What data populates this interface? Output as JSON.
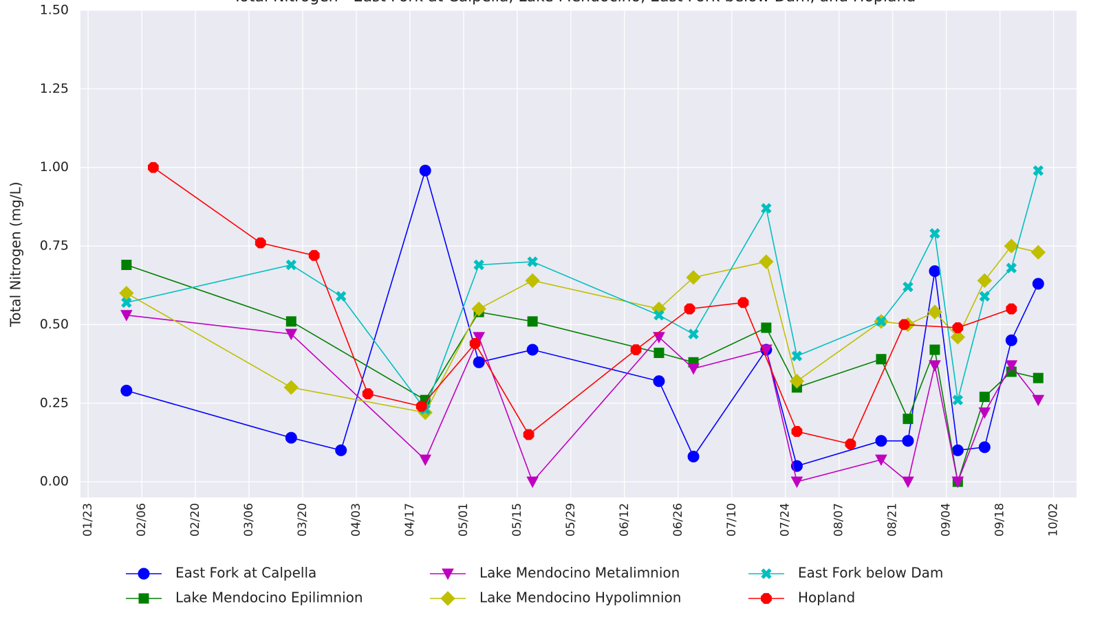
{
  "chart_data": {
    "type": "line",
    "title": "Total Nitrogen - East Fork at Calpella, Lake Mendocino, East Fork below Dam, and Hopland",
    "ylabel": "Total Nitrogen (mg/L)",
    "grid": true,
    "legend": "bottom",
    "xlim": [
      "01/21",
      "10/08"
    ],
    "xticks": [
      "01/23",
      "02/06",
      "02/20",
      "03/06",
      "03/20",
      "04/03",
      "04/17",
      "05/01",
      "05/15",
      "05/29",
      "06/12",
      "06/26",
      "07/10",
      "07/24",
      "08/07",
      "08/21",
      "09/04",
      "09/18",
      "10/02"
    ],
    "ylim": [
      -0.05,
      1.5
    ],
    "yticks": [
      {
        "value": 0,
        "label": "0.00"
      },
      {
        "value": 0.25,
        "label": "0.25"
      },
      {
        "value": 0.5,
        "label": "0.50"
      },
      {
        "value": 0.75,
        "label": "0.75"
      },
      {
        "value": 1,
        "label": "1.00"
      },
      {
        "value": 1.25,
        "label": "1.25"
      },
      {
        "value": 1.5,
        "label": "1.50"
      }
    ],
    "series": [
      {
        "name": "East Fork at Calpella",
        "color": "#0000ff",
        "marker": "circle",
        "x": [
          "02/02",
          "03/17",
          "03/30",
          "04/21",
          "05/05",
          "05/19",
          "06/21",
          "06/30",
          "07/19",
          "07/27",
          "08/18",
          "08/25",
          "09/01",
          "09/07",
          "09/14",
          "09/21",
          "09/28"
        ],
        "values": [
          0.29,
          0.14,
          0.1,
          0.99,
          0.38,
          0.42,
          0.32,
          0.08,
          0.42,
          0.05,
          0.13,
          0.13,
          0.67,
          0.1,
          0.11,
          0.45,
          0.63
        ]
      },
      {
        "name": "Lake Mendocino Epilimnion",
        "color": "#008000",
        "marker": "square",
        "x": [
          "02/02",
          "03/17",
          "04/21",
          "05/05",
          "05/19",
          "06/21",
          "06/30",
          "07/19",
          "07/27",
          "08/18",
          "08/25",
          "09/01",
          "09/07",
          "09/14",
          "09/21",
          "09/28"
        ],
        "values": [
          0.69,
          0.51,
          0.26,
          0.54,
          0.51,
          0.41,
          0.38,
          0.49,
          0.3,
          0.39,
          0.2,
          0.42,
          0.0,
          0.27,
          0.35,
          0.33
        ]
      },
      {
        "name": "Lake Mendocino Metalimnion",
        "color": "#bf00bf",
        "marker": "triangle-down",
        "x": [
          "02/02",
          "03/17",
          "04/21",
          "05/05",
          "05/19",
          "06/21",
          "06/30",
          "07/19",
          "07/27",
          "08/18",
          "08/25",
          "09/01",
          "09/07",
          "09/14",
          "09/21",
          "09/28"
        ],
        "values": [
          0.53,
          0.47,
          0.07,
          0.46,
          0.0,
          0.46,
          0.36,
          0.42,
          0.0,
          0.07,
          0.0,
          0.37,
          0.0,
          0.22,
          0.37,
          0.26
        ]
      },
      {
        "name": "Lake Mendocino Hypolimnion",
        "color": "#bfbf00",
        "marker": "diamond",
        "x": [
          "02/02",
          "03/17",
          "04/21",
          "05/05",
          "05/19",
          "06/21",
          "06/30",
          "07/19",
          "07/27",
          "08/18",
          "08/25",
          "09/01",
          "09/07",
          "09/14",
          "09/21",
          "09/28"
        ],
        "values": [
          0.6,
          0.3,
          0.22,
          0.55,
          0.64,
          0.55,
          0.65,
          0.7,
          0.32,
          0.51,
          0.5,
          0.54,
          0.46,
          0.64,
          0.75,
          0.73
        ]
      },
      {
        "name": "East Fork below Dam",
        "color": "#00bfbf",
        "marker": "x",
        "x": [
          "02/02",
          "03/17",
          "03/30",
          "04/21",
          "05/05",
          "05/19",
          "06/21",
          "06/30",
          "07/19",
          "07/27",
          "08/18",
          "08/25",
          "09/01",
          "09/07",
          "09/14",
          "09/21",
          "09/28"
        ],
        "values": [
          0.57,
          0.69,
          0.59,
          0.23,
          0.69,
          0.7,
          0.53,
          0.47,
          0.87,
          0.4,
          0.51,
          0.62,
          0.79,
          0.26,
          0.59,
          0.68,
          0.99
        ]
      },
      {
        "name": "Hopland",
        "color": "#ff0000",
        "marker": "octagon",
        "x": [
          "02/09",
          "03/09",
          "03/23",
          "04/06",
          "04/20",
          "05/04",
          "05/18",
          "06/15",
          "06/29",
          "07/13",
          "07/27",
          "08/10",
          "08/24",
          "09/07",
          "09/21"
        ],
        "values": [
          1.0,
          0.76,
          0.72,
          0.28,
          0.24,
          0.44,
          0.15,
          0.42,
          0.55,
          0.57,
          0.16,
          0.12,
          0.5,
          0.49,
          0.55
        ]
      }
    ]
  }
}
